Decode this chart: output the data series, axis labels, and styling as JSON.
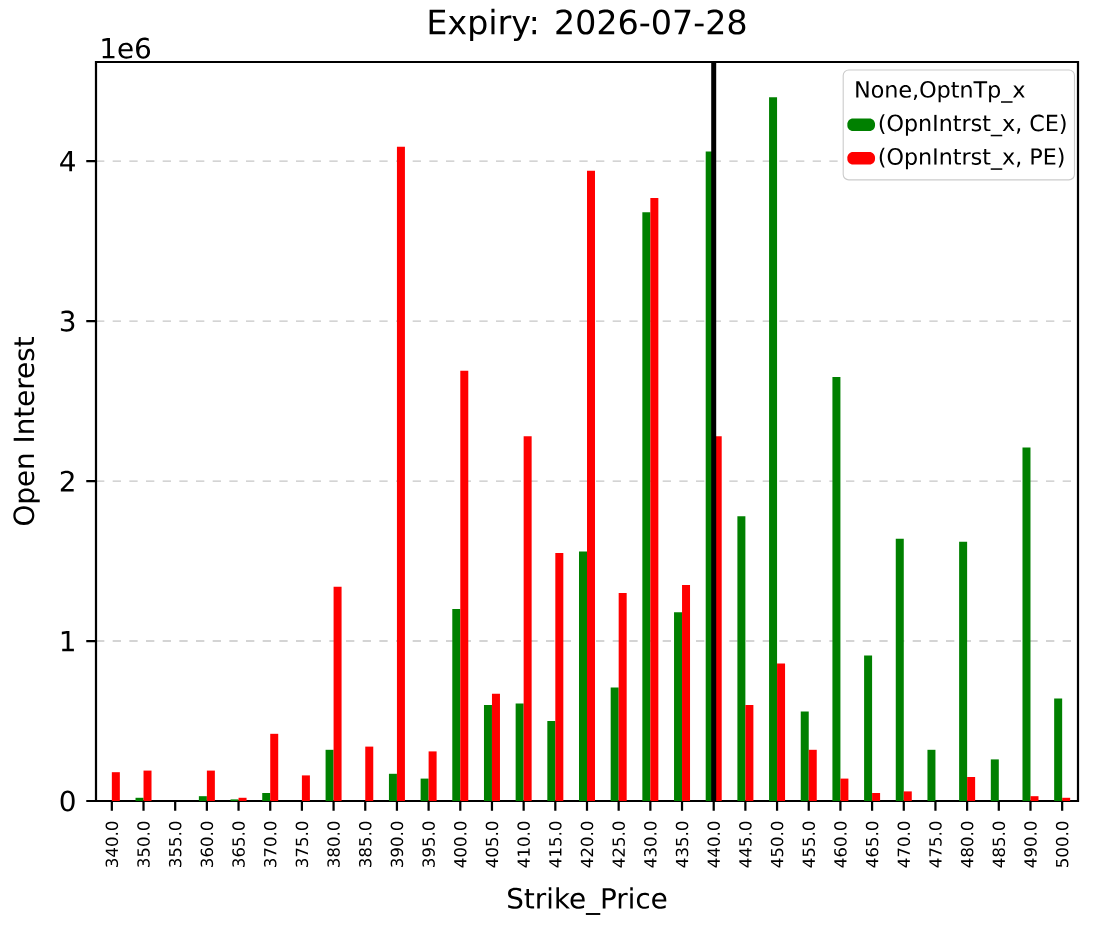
{
  "chart_data": {
    "type": "bar",
    "title": "Expiry: 2026-07-28",
    "xlabel": "Strike_Price",
    "ylabel": "Open Interest",
    "legend_title": "None,OptnTp_x",
    "categories": [
      "340.0",
      "350.0",
      "355.0",
      "360.0",
      "365.0",
      "370.0",
      "375.0",
      "380.0",
      "385.0",
      "390.0",
      "395.0",
      "400.0",
      "405.0",
      "410.0",
      "415.0",
      "420.0",
      "425.0",
      "430.0",
      "435.0",
      "440.0",
      "445.0",
      "450.0",
      "455.0",
      "460.0",
      "465.0",
      "470.0",
      "475.0",
      "480.0",
      "485.0",
      "490.0",
      "500.0"
    ],
    "series": [
      {
        "name": "(OpnIntrst_x, CE)",
        "color": "#008000",
        "values": [
          0,
          0.02,
          0,
          0.03,
          0.01,
          0.05,
          0,
          0.32,
          0,
          0.17,
          0.14,
          1.2,
          0.6,
          0.61,
          0.5,
          1.56,
          0.71,
          3.68,
          1.18,
          4.06,
          1.78,
          4.4,
          0.56,
          2.65,
          0.91,
          1.64,
          0.32,
          1.62,
          0.26,
          2.21,
          0.64
        ]
      },
      {
        "name": "(OpnIntrst_x, PE)",
        "color": "#ff0000",
        "values": [
          0.18,
          0.19,
          0,
          0.19,
          0.02,
          0.42,
          0.16,
          1.34,
          0.34,
          4.09,
          0.31,
          2.69,
          0.67,
          2.28,
          1.55,
          3.94,
          1.3,
          3.77,
          1.35,
          2.28,
          0.6,
          0.86,
          0.32,
          0.14,
          0.05,
          0.06,
          0,
          0.15,
          0,
          0.03,
          0.02
        ]
      }
    ],
    "ylim": [
      0,
      4.62
    ],
    "yticks": [
      0,
      1,
      2,
      3,
      4
    ],
    "grid": "y",
    "legend": "top right",
    "ref_lines": [
      {
        "axis": "x",
        "value": "440.0",
        "color": "#000000"
      }
    ],
    "annotations": [
      "1e6"
    ]
  }
}
